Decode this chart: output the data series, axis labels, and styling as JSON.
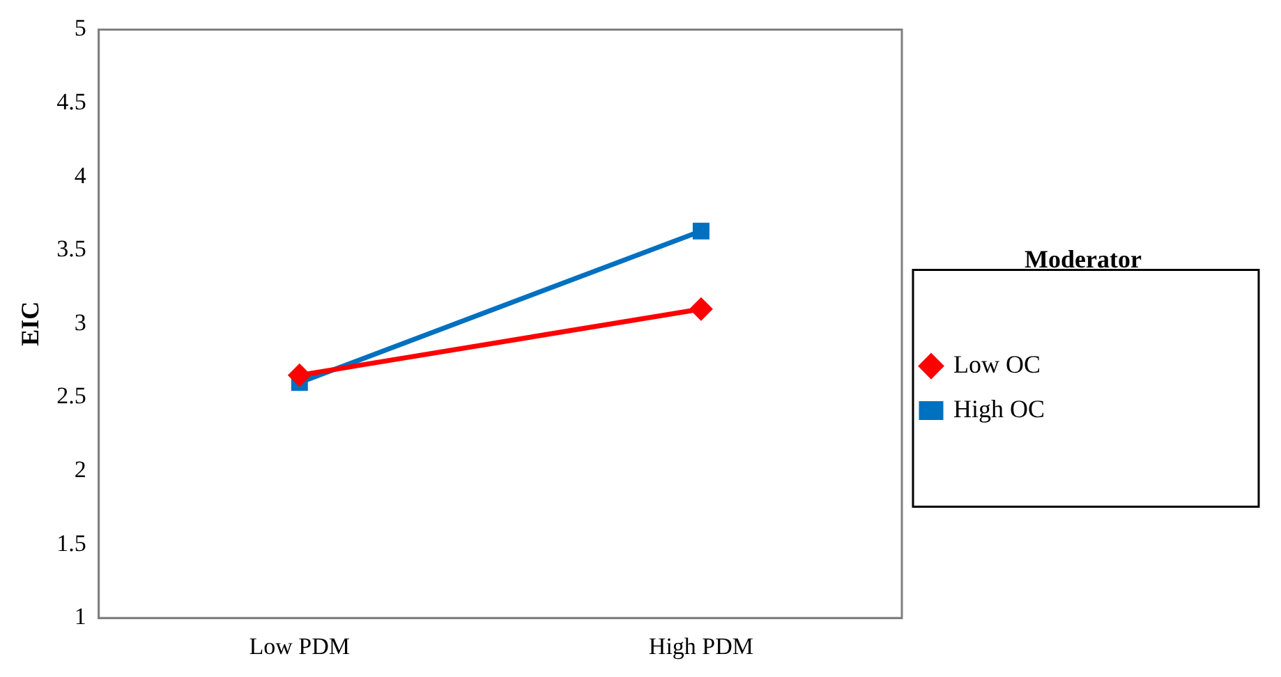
{
  "chart_data": {
    "type": "line",
    "ylabel": "EIC",
    "legend_title": "Moderator",
    "categories": [
      "Low PDM",
      "High PDM"
    ],
    "series": [
      {
        "name": "Low OC",
        "color": "#ff0000",
        "marker": "diamond",
        "values": [
          2.65,
          3.1
        ]
      },
      {
        "name": "High OC",
        "color": "#0070c0",
        "marker": "square",
        "values": [
          2.6,
          3.63
        ]
      }
    ],
    "ylim": [
      1,
      5
    ],
    "yticks": [
      1,
      1.5,
      2,
      2.5,
      3,
      3.5,
      4,
      4.5,
      5
    ],
    "grid": false,
    "legend": "right",
    "line_style": "solid"
  }
}
